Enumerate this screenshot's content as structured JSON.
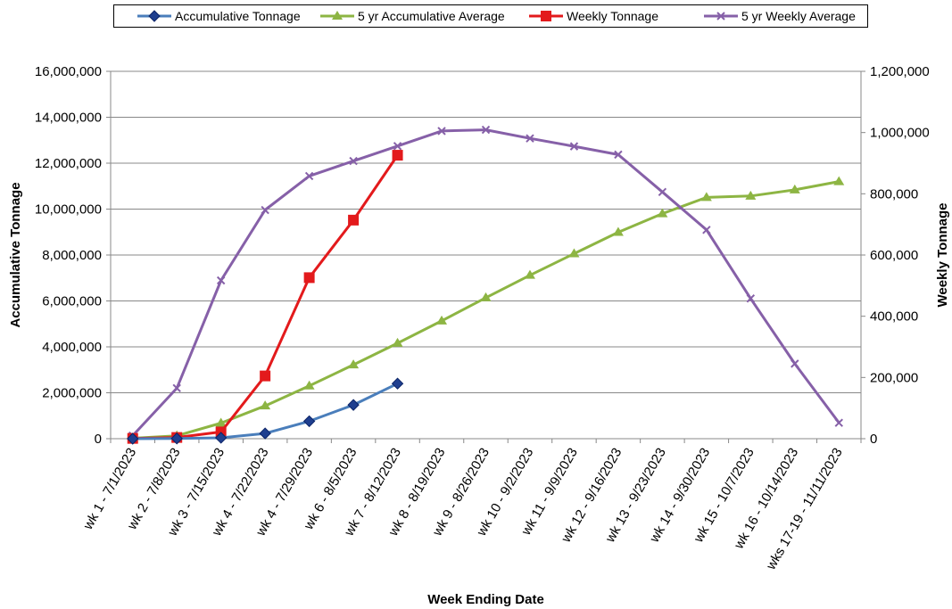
{
  "chart_data": {
    "type": "line",
    "xlabel": "Week Ending Date",
    "ylabel_left": "Accumulative Tonnage",
    "ylabel_right": "Weekly Tonnage",
    "categories": [
      "wk 1 - 7/1/2023",
      "wk 2 - 7/8/2023",
      "wk 3 - 7/15/2023",
      "wk 4 - 7/22/2023",
      "wk 4 - 7/29/2023",
      "wk 6 - 8/5/2023",
      "wk 7 - 8/12/2023",
      "wk 8 - 8/19/2023",
      "wk 9 - 8/26/2023",
      "wk 10 - 9/2/2023",
      "wk 11 - 9/9/2023",
      "wk 12 - 9/16/2023",
      "wk 13 - 9/23/2023",
      "wk 14 - 9/30/2023",
      "wk 15 - 10/7/2023",
      "wk 16 - 10/14/2023",
      "wks 17-19 - 11/11/2023"
    ],
    "ylim_left": [
      0,
      16000000
    ],
    "yticks_left": [
      "0",
      "2,000,000",
      "4,000,000",
      "6,000,000",
      "8,000,000",
      "10,000,000",
      "12,000,000",
      "14,000,000",
      "16,000,000"
    ],
    "ylim_right": [
      0,
      1200000
    ],
    "yticks_right": [
      "0",
      "200,000",
      "400,000",
      "600,000",
      "800,000",
      "1,000,000",
      "1,200,000"
    ],
    "grid": "horizontal",
    "legend_position": "top",
    "series": [
      {
        "name": "Accumulative Tonnage",
        "axis": "left",
        "color": "#4A7EBB",
        "marker": "diamond",
        "values": [
          0,
          10000,
          40000,
          230000,
          760000,
          1470000,
          2400000,
          null,
          null,
          null,
          null,
          null,
          null,
          null,
          null,
          null,
          null
        ]
      },
      {
        "name": "5 yr Accumulative Average",
        "axis": "left",
        "color": "#8DB543",
        "marker": "triangle",
        "values": [
          20000,
          130000,
          680000,
          1430000,
          2300000,
          3220000,
          4160000,
          5130000,
          6140000,
          7120000,
          8060000,
          8990000,
          9800000,
          10510000,
          10570000,
          10840000,
          11200000
        ]
      },
      {
        "name": "Weekly Tonnage",
        "axis": "right",
        "color": "#E31A1C",
        "marker": "square",
        "values": [
          1000,
          4000,
          22000,
          205000,
          526000,
          714000,
          926000,
          null,
          null,
          null,
          null,
          null,
          null,
          null,
          null,
          null,
          null
        ]
      },
      {
        "name": "5 yr Weekly Average",
        "axis": "right",
        "color": "#8660A8",
        "marker": "x",
        "values": [
          10000,
          165000,
          517000,
          747000,
          858000,
          907000,
          956000,
          1005000,
          1009000,
          981000,
          955000,
          928000,
          806000,
          682000,
          458000,
          245000,
          52000
        ]
      }
    ]
  }
}
